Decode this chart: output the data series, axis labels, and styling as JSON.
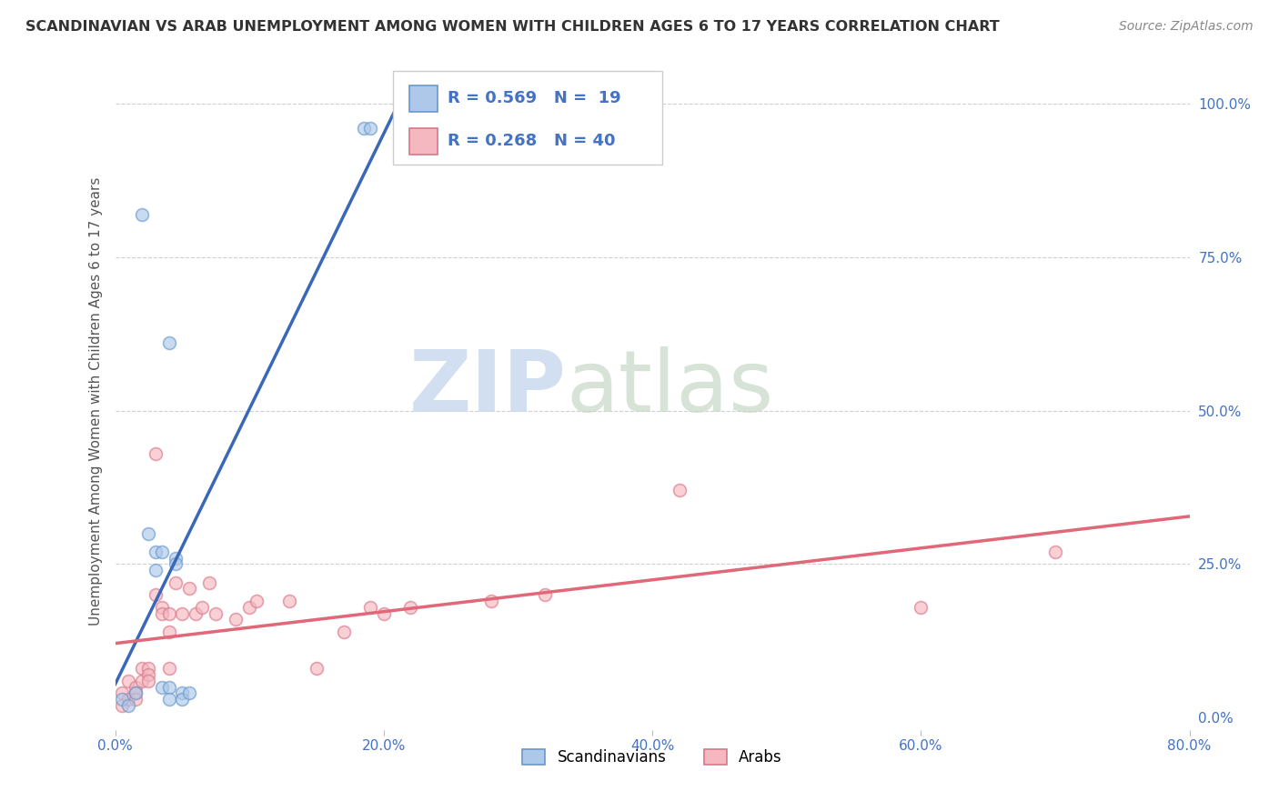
{
  "title": "SCANDINAVIAN VS ARAB UNEMPLOYMENT AMONG WOMEN WITH CHILDREN AGES 6 TO 17 YEARS CORRELATION CHART",
  "source": "Source: ZipAtlas.com",
  "ylabel": "Unemployment Among Women with Children Ages 6 to 17 years",
  "xlim": [
    0.0,
    0.8
  ],
  "ylim": [
    -0.02,
    1.05
  ],
  "xticks": [
    0.0,
    0.2,
    0.4,
    0.6,
    0.8
  ],
  "xticklabels": [
    "0.0%",
    "20.0%",
    "40.0%",
    "60.0%",
    "80.0%"
  ],
  "yticks_right": [
    0.0,
    0.25,
    0.5,
    0.75,
    1.0
  ],
  "yticklabels_right": [
    "0.0%",
    "25.0%",
    "50.0%",
    "75.0%",
    "100.0%"
  ],
  "background_color": "#ffffff",
  "scandinavian_color": "#adc8e8",
  "arab_color": "#f5b8c0",
  "scandinavian_line_color": "#3a68b8",
  "arab_line_color": "#e06878",
  "legend_R_scand": "0.569",
  "legend_N_scand": "19",
  "legend_R_arab": "0.268",
  "legend_N_arab": "40",
  "legend_label_scand": "Scandinavians",
  "legend_label_arab": "Arabs",
  "scand_x": [
    0.005,
    0.01,
    0.015,
    0.02,
    0.025,
    0.03,
    0.03,
    0.035,
    0.035,
    0.04,
    0.04,
    0.04,
    0.045,
    0.045,
    0.05,
    0.05,
    0.055,
    0.185,
    0.19
  ],
  "scand_y": [
    0.03,
    0.02,
    0.04,
    0.82,
    0.3,
    0.27,
    0.24,
    0.27,
    0.05,
    0.05,
    0.03,
    0.61,
    0.26,
    0.25,
    0.04,
    0.03,
    0.04,
    0.96,
    0.96
  ],
  "arab_x": [
    0.005,
    0.005,
    0.01,
    0.01,
    0.015,
    0.015,
    0.015,
    0.02,
    0.02,
    0.025,
    0.025,
    0.025,
    0.03,
    0.03,
    0.035,
    0.035,
    0.04,
    0.04,
    0.04,
    0.045,
    0.05,
    0.055,
    0.06,
    0.065,
    0.07,
    0.075,
    0.09,
    0.1,
    0.105,
    0.13,
    0.15,
    0.17,
    0.19,
    0.2,
    0.22,
    0.28,
    0.32,
    0.42,
    0.6,
    0.7
  ],
  "arab_y": [
    0.04,
    0.02,
    0.06,
    0.03,
    0.05,
    0.04,
    0.03,
    0.08,
    0.06,
    0.08,
    0.07,
    0.06,
    0.43,
    0.2,
    0.18,
    0.17,
    0.08,
    0.17,
    0.14,
    0.22,
    0.17,
    0.21,
    0.17,
    0.18,
    0.22,
    0.17,
    0.16,
    0.18,
    0.19,
    0.19,
    0.08,
    0.14,
    0.18,
    0.17,
    0.18,
    0.19,
    0.2,
    0.37,
    0.18,
    0.27
  ],
  "grid_color": "#d0d0d0",
  "dot_size": 100,
  "dot_alpha": 0.65,
  "dot_linewidth": 1.2,
  "dot_edgecolor_scand": "#6898cc",
  "dot_edgecolor_arab": "#d87888",
  "legend_text_color": "#4472c4",
  "legend_value_color": "#4472c4",
  "title_color": "#333333",
  "source_color": "#888888",
  "axis_tick_color": "#4472c4",
  "ylabel_color": "#555555"
}
